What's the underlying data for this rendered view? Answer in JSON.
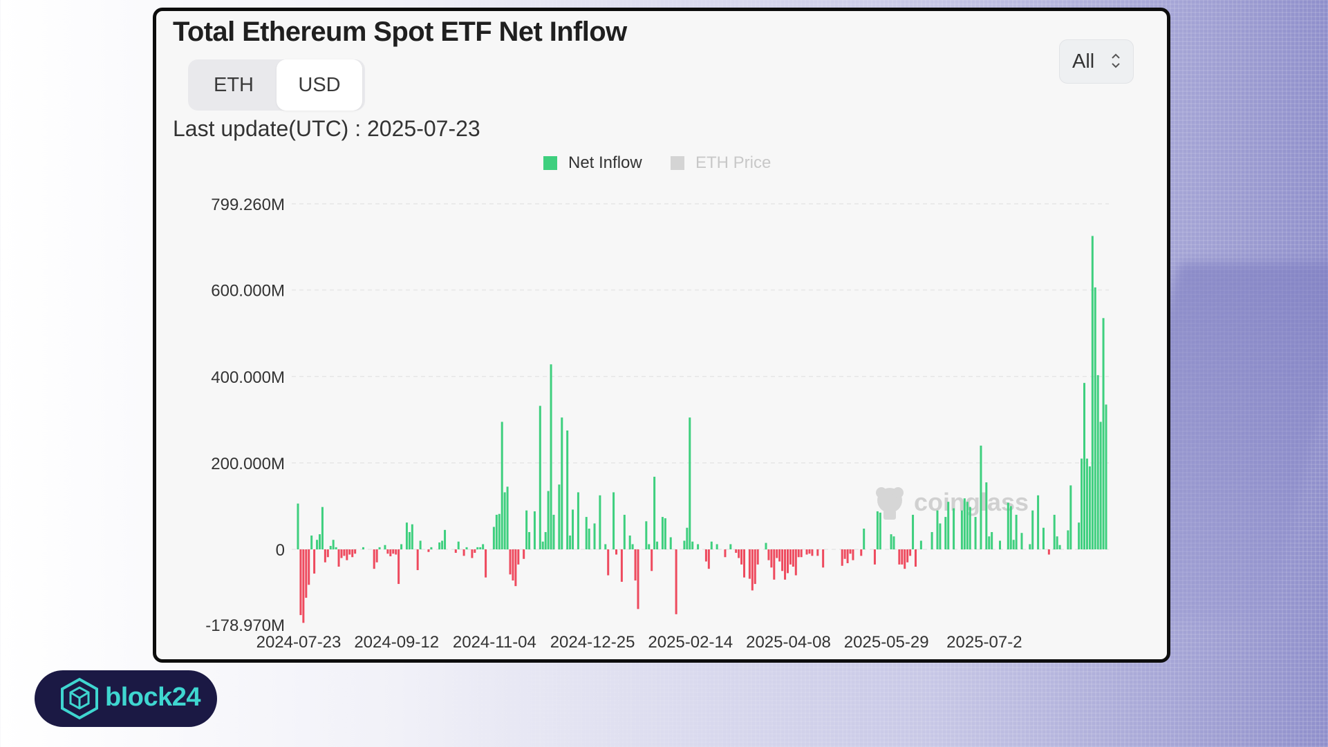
{
  "header": {
    "title": "Total Ethereum Spot ETF Net Inflow"
  },
  "unit_toggle": {
    "options": [
      "ETH",
      "USD"
    ],
    "selected": "USD"
  },
  "range_select": {
    "value": "All",
    "chevron": "⌃⌄"
  },
  "last_update": "Last update(UTC) : 2025-07-23",
  "colors": {
    "inflow": "#3ecf7e",
    "outflow": "#ee4a5e",
    "price": "#d4d4d4",
    "accent": "#3fd6d0",
    "badge": "#1b1944"
  },
  "watermark": "coinglass",
  "brand": {
    "name": "block24",
    "icon": "cube-icon"
  },
  "chart_data": {
    "type": "bar",
    "title": "Total Ethereum Spot ETF Net Inflow",
    "unit": "USD",
    "legend": [
      {
        "name": "Net Inflow",
        "active": true
      },
      {
        "name": "ETH Price",
        "active": false
      }
    ],
    "y_ticks": [
      "799.260M",
      "600.000M",
      "400.000M",
      "200.000M",
      "0",
      "-178.970M"
    ],
    "y_tick_values": [
      799.26,
      600,
      400,
      200,
      0,
      -178.97
    ],
    "ylim": [
      -178.97,
      799.26
    ],
    "x_ticks": [
      "2024-07-23",
      "2024-09-12",
      "2024-11-04",
      "2024-12-25",
      "2025-02-14",
      "2025-04-08",
      "2025-05-29",
      "2025-07-2"
    ],
    "x_tick_index": [
      0,
      36,
      72,
      108,
      144,
      180,
      216,
      252
    ],
    "series": [
      {
        "name": "Net Inflow",
        "unit": "M USD",
        "values": [
          106,
          -152,
          -170,
          -112,
          -82,
          32,
          -56,
          22,
          35,
          98,
          -30,
          -18,
          8,
          22,
          5,
          -40,
          -20,
          -15,
          -25,
          -12,
          -18,
          -10,
          0,
          0,
          5,
          0,
          0,
          0,
          -45,
          -30,
          5,
          0,
          10,
          -10,
          -16,
          -10,
          -12,
          -80,
          12,
          0,
          62,
          40,
          58,
          0,
          -48,
          20,
          0,
          0,
          -6,
          5,
          0,
          0,
          16,
          20,
          45,
          0,
          0,
          0,
          -8,
          18,
          0,
          -15,
          5,
          0,
          -20,
          -8,
          5,
          5,
          12,
          -65,
          0,
          0,
          52,
          80,
          82,
          295,
          132,
          145,
          -58,
          -72,
          -85,
          -35,
          0,
          -22,
          90,
          40,
          0,
          88,
          0,
          332,
          18,
          40,
          135,
          428,
          80,
          0,
          150,
          305,
          0,
          275,
          32,
          92,
          0,
          132,
          0,
          0,
          75,
          48,
          0,
          60,
          0,
          125,
          0,
          12,
          -60,
          0,
          132,
          -12,
          0,
          -75,
          80,
          0,
          32,
          12,
          -72,
          -138,
          0,
          0,
          65,
          12,
          -50,
          168,
          18,
          0,
          75,
          72,
          0,
          28,
          0,
          -150,
          0,
          0,
          20,
          50,
          305,
          18,
          0,
          12,
          0,
          0,
          -28,
          -45,
          18,
          0,
          12,
          0,
          0,
          -18,
          0,
          12,
          0,
          -8,
          -20,
          -35,
          -65,
          0,
          -68,
          -95,
          -80,
          -35,
          0,
          0,
          15,
          -25,
          -42,
          -70,
          -20,
          -28,
          -50,
          -70,
          -55,
          -35,
          -40,
          -60,
          -18,
          -18,
          0,
          -12,
          -10,
          -15,
          0,
          -15,
          0,
          -42,
          0,
          0,
          0,
          0,
          0,
          0,
          -38,
          -22,
          -32,
          -10,
          -25,
          0,
          0,
          -15,
          48,
          0,
          0,
          0,
          -35,
          88,
          85,
          0,
          0,
          0,
          35,
          30,
          0,
          -35,
          -35,
          -45,
          -30,
          -15,
          80,
          -40,
          0,
          20,
          0,
          0,
          0,
          40,
          0,
          90,
          60,
          0,
          75,
          110,
          0,
          95,
          0,
          0,
          90,
          118,
          110,
          98,
          0,
          75,
          0,
          240,
          0,
          155,
          30,
          40,
          0,
          0,
          20,
          0,
          0,
          108,
          100,
          22,
          80,
          0,
          38,
          0,
          0,
          12,
          90,
          0,
          125,
          0,
          50,
          0,
          -12,
          0,
          80,
          30,
          10,
          0,
          0,
          44,
          148,
          0,
          0,
          62,
          210,
          385,
          210,
          192,
          725,
          606,
          403,
          295,
          535,
          335
        ]
      },
      {
        "name": "ETH Price",
        "values": []
      }
    ]
  }
}
